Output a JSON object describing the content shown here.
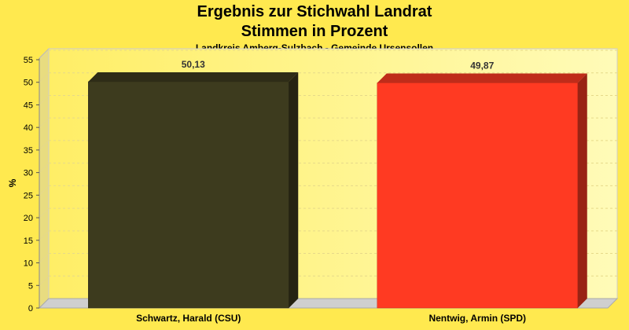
{
  "colors": {
    "background": "#ffe94f",
    "plot_back": "#fff9a8",
    "csu_bar": "#3d3b1e",
    "spd_bar": "#ff3a22"
  },
  "chart_data": {
    "type": "bar",
    "title": "Ergebnis zur Stichwahl Landrat",
    "subtitle": "Stimmen in Prozent",
    "caption": "Landkreis Amberg-Sulzbach - Gemeinde Ursensollen",
    "ylabel": "%",
    "xlabel": "",
    "ylim": [
      0,
      55
    ],
    "yticks": [
      "0",
      "5",
      "10",
      "15",
      "20",
      "25",
      "30",
      "35",
      "40",
      "45",
      "50",
      "55"
    ],
    "categories": [
      "Schwartz, Harald (CSU)",
      "Nentwig, Armin (SPD)"
    ],
    "values": [
      50.13,
      49.87
    ],
    "value_labels": [
      "50,13",
      "49,87"
    ],
    "bar_colors": [
      "#3d3b1e",
      "#ff3a22"
    ],
    "grid": true,
    "three_d": true
  }
}
